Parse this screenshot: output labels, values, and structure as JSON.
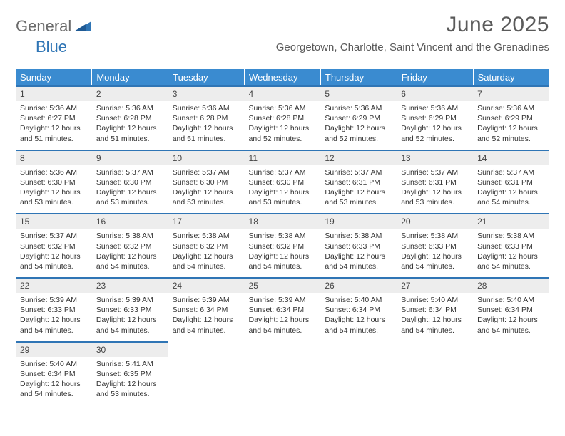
{
  "logo": {
    "part1": "General",
    "part2": "Blue"
  },
  "title": "June 2025",
  "location": "Georgetown, Charlotte, Saint Vincent and the Grenadines",
  "colors": {
    "header_bg": "#3a8bd0",
    "header_text": "#ffffff",
    "daynum_bg": "#ededed",
    "row_border": "#2f75b5",
    "logo_gray": "#6a6a6a",
    "logo_blue": "#2f75b5",
    "text": "#333333",
    "title_color": "#5a5a5a"
  },
  "weekdays": [
    "Sunday",
    "Monday",
    "Tuesday",
    "Wednesday",
    "Thursday",
    "Friday",
    "Saturday"
  ],
  "weeks": [
    [
      {
        "day": "1",
        "sunrise": "5:36 AM",
        "sunset": "6:27 PM",
        "daylight": "12 hours and 51 minutes."
      },
      {
        "day": "2",
        "sunrise": "5:36 AM",
        "sunset": "6:28 PM",
        "daylight": "12 hours and 51 minutes."
      },
      {
        "day": "3",
        "sunrise": "5:36 AM",
        "sunset": "6:28 PM",
        "daylight": "12 hours and 51 minutes."
      },
      {
        "day": "4",
        "sunrise": "5:36 AM",
        "sunset": "6:28 PM",
        "daylight": "12 hours and 52 minutes."
      },
      {
        "day": "5",
        "sunrise": "5:36 AM",
        "sunset": "6:29 PM",
        "daylight": "12 hours and 52 minutes."
      },
      {
        "day": "6",
        "sunrise": "5:36 AM",
        "sunset": "6:29 PM",
        "daylight": "12 hours and 52 minutes."
      },
      {
        "day": "7",
        "sunrise": "5:36 AM",
        "sunset": "6:29 PM",
        "daylight": "12 hours and 52 minutes."
      }
    ],
    [
      {
        "day": "8",
        "sunrise": "5:36 AM",
        "sunset": "6:30 PM",
        "daylight": "12 hours and 53 minutes."
      },
      {
        "day": "9",
        "sunrise": "5:37 AM",
        "sunset": "6:30 PM",
        "daylight": "12 hours and 53 minutes."
      },
      {
        "day": "10",
        "sunrise": "5:37 AM",
        "sunset": "6:30 PM",
        "daylight": "12 hours and 53 minutes."
      },
      {
        "day": "11",
        "sunrise": "5:37 AM",
        "sunset": "6:30 PM",
        "daylight": "12 hours and 53 minutes."
      },
      {
        "day": "12",
        "sunrise": "5:37 AM",
        "sunset": "6:31 PM",
        "daylight": "12 hours and 53 minutes."
      },
      {
        "day": "13",
        "sunrise": "5:37 AM",
        "sunset": "6:31 PM",
        "daylight": "12 hours and 53 minutes."
      },
      {
        "day": "14",
        "sunrise": "5:37 AM",
        "sunset": "6:31 PM",
        "daylight": "12 hours and 54 minutes."
      }
    ],
    [
      {
        "day": "15",
        "sunrise": "5:37 AM",
        "sunset": "6:32 PM",
        "daylight": "12 hours and 54 minutes."
      },
      {
        "day": "16",
        "sunrise": "5:38 AM",
        "sunset": "6:32 PM",
        "daylight": "12 hours and 54 minutes."
      },
      {
        "day": "17",
        "sunrise": "5:38 AM",
        "sunset": "6:32 PM",
        "daylight": "12 hours and 54 minutes."
      },
      {
        "day": "18",
        "sunrise": "5:38 AM",
        "sunset": "6:32 PM",
        "daylight": "12 hours and 54 minutes."
      },
      {
        "day": "19",
        "sunrise": "5:38 AM",
        "sunset": "6:33 PM",
        "daylight": "12 hours and 54 minutes."
      },
      {
        "day": "20",
        "sunrise": "5:38 AM",
        "sunset": "6:33 PM",
        "daylight": "12 hours and 54 minutes."
      },
      {
        "day": "21",
        "sunrise": "5:38 AM",
        "sunset": "6:33 PM",
        "daylight": "12 hours and 54 minutes."
      }
    ],
    [
      {
        "day": "22",
        "sunrise": "5:39 AM",
        "sunset": "6:33 PM",
        "daylight": "12 hours and 54 minutes."
      },
      {
        "day": "23",
        "sunrise": "5:39 AM",
        "sunset": "6:33 PM",
        "daylight": "12 hours and 54 minutes."
      },
      {
        "day": "24",
        "sunrise": "5:39 AM",
        "sunset": "6:34 PM",
        "daylight": "12 hours and 54 minutes."
      },
      {
        "day": "25",
        "sunrise": "5:39 AM",
        "sunset": "6:34 PM",
        "daylight": "12 hours and 54 minutes."
      },
      {
        "day": "26",
        "sunrise": "5:40 AM",
        "sunset": "6:34 PM",
        "daylight": "12 hours and 54 minutes."
      },
      {
        "day": "27",
        "sunrise": "5:40 AM",
        "sunset": "6:34 PM",
        "daylight": "12 hours and 54 minutes."
      },
      {
        "day": "28",
        "sunrise": "5:40 AM",
        "sunset": "6:34 PM",
        "daylight": "12 hours and 54 minutes."
      }
    ],
    [
      {
        "day": "29",
        "sunrise": "5:40 AM",
        "sunset": "6:34 PM",
        "daylight": "12 hours and 54 minutes."
      },
      {
        "day": "30",
        "sunrise": "5:41 AM",
        "sunset": "6:35 PM",
        "daylight": "12 hours and 53 minutes."
      },
      null,
      null,
      null,
      null,
      null
    ]
  ],
  "labels": {
    "sunrise": "Sunrise:",
    "sunset": "Sunset:",
    "daylight": "Daylight:"
  }
}
